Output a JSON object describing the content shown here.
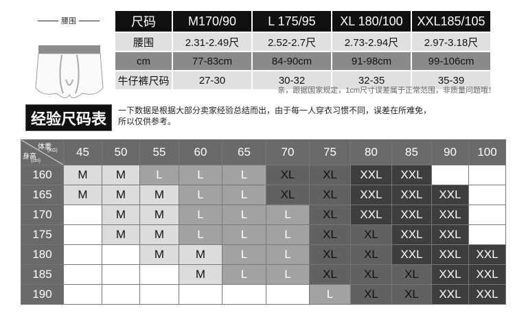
{
  "waist_label": "腰围",
  "size_table": {
    "header": [
      "尺码",
      "M170/90",
      "L 175/95",
      "XL 180/100",
      "XXL185/105"
    ],
    "rows": [
      [
        "腰围",
        "2.31-2.49尺",
        "2.52-2.7尺",
        "2.73-2.94尺",
        "2.97-3.18尺"
      ],
      [
        "cm",
        "77-83cm",
        "84-90cm",
        "91-98cm",
        "99-106cm"
      ],
      [
        "牛仔裤尺码",
        "27-30",
        "30-32",
        "32-35",
        "35-39"
      ]
    ]
  },
  "note": "亲，跟据国家规定，1cm尺寸误差属于正常范围，非质量问题哦！",
  "experience": {
    "title": "经验尺码表",
    "desc_line1": "一下数据是根据大部分卖家经验总结而出，由于每一人穿衣习惯不同，误差在所难免，",
    "desc_line2": "所以仅供参考。"
  },
  "grid": {
    "corner_weight": "体重",
    "corner_weight_unit": "(KG)",
    "corner_height": "身高",
    "corner_height_unit": "(cm)",
    "weights": [
      "45",
      "50",
      "55",
      "60",
      "65",
      "70",
      "75",
      "80",
      "85",
      "90",
      "100"
    ],
    "rows": [
      {
        "height": "160",
        "sizes": [
          "M",
          "M",
          "L",
          "L",
          "L",
          "XL",
          "XL",
          "XXL",
          "XXL",
          "",
          ""
        ]
      },
      {
        "height": "165",
        "sizes": [
          "M",
          "M",
          "M",
          "L",
          "L",
          "XL",
          "XL",
          "XXL",
          "XXL",
          "XXL",
          ""
        ]
      },
      {
        "height": "170",
        "sizes": [
          "",
          "M",
          "M",
          "L",
          "L",
          "L",
          "XL",
          "XXL",
          "XXL",
          "XXL",
          ""
        ]
      },
      {
        "height": "175",
        "sizes": [
          "",
          "M",
          "M",
          "L",
          "L",
          "L",
          "XL",
          "XL",
          "XXL",
          "XXL",
          ""
        ]
      },
      {
        "height": "180",
        "sizes": [
          "",
          "",
          "M",
          "M",
          "L",
          "L",
          "XL",
          "XL",
          "XXL",
          "XXL",
          "XXL"
        ]
      },
      {
        "height": "185",
        "sizes": [
          "",
          "",
          "",
          "M",
          "L",
          "L",
          "XL",
          "XL",
          "XL",
          "XXL",
          "XXL"
        ]
      },
      {
        "height": "190",
        "sizes": [
          "",
          "",
          "",
          "",
          "",
          "",
          "L",
          "XL",
          "XL",
          "XXL",
          "XXL"
        ]
      }
    ]
  },
  "colors": {
    "M": "#dcdcdc",
    "L": "#a2a2a2",
    "XL": "#616161",
    "XXL": "#3e3e3e",
    "header": "#111111"
  }
}
